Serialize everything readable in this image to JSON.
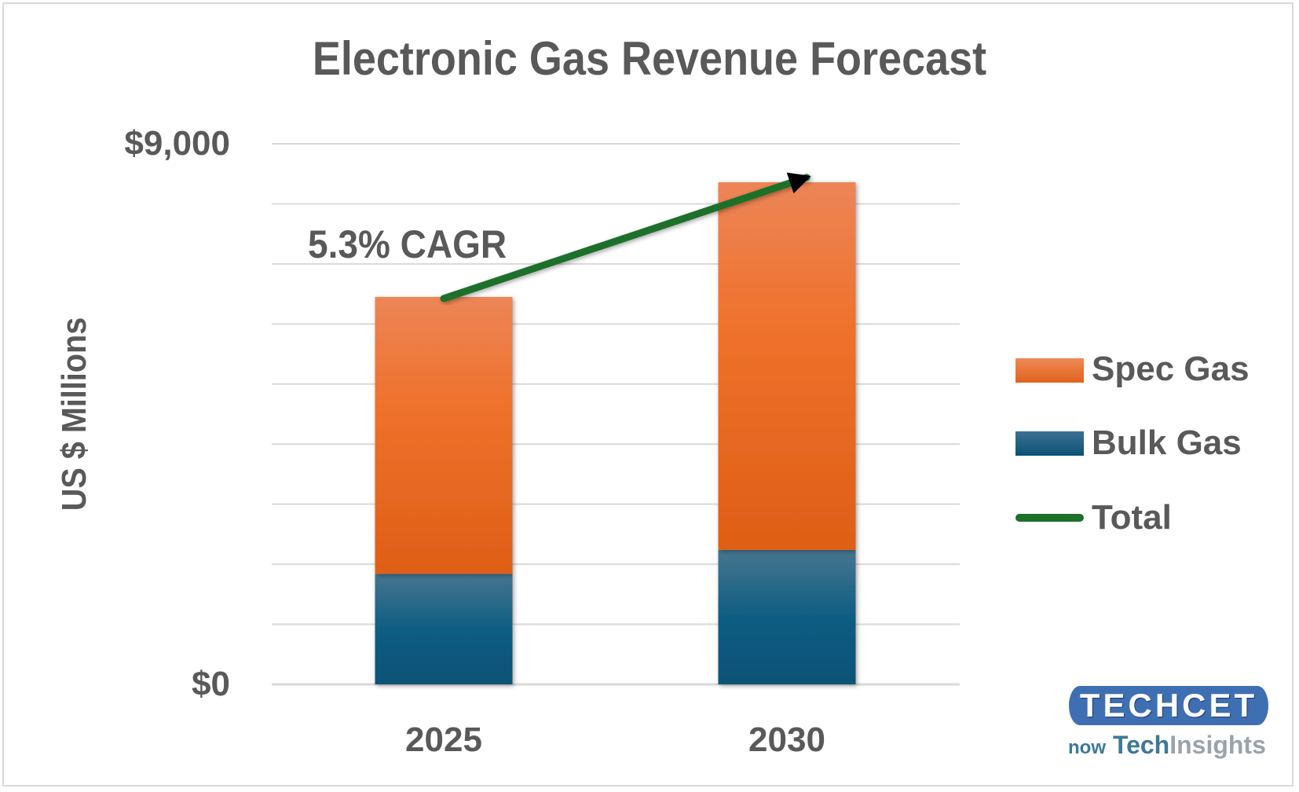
{
  "chart_data": {
    "type": "bar",
    "stacked": true,
    "title": "Electronic Gas Revenue Forecast",
    "xlabel": "",
    "ylabel": "US $ Millions",
    "categories": [
      "2025",
      "2030"
    ],
    "series": [
      {
        "name": "Bulk Gas",
        "values": [
          1840,
          2240
        ],
        "color": "#0f5a80"
      },
      {
        "name": "Spec Gas",
        "values": [
          4610,
          6120
        ],
        "color": "#ec6f2a"
      }
    ],
    "line_series": {
      "name": "Total",
      "values": [
        6450,
        8360
      ],
      "color": "#1e7029"
    },
    "ylim": [
      0,
      9000
    ],
    "ytick_labels": [
      "$0",
      "$9,000"
    ],
    "grid_step": 1000,
    "grid": true,
    "legend_position": "right",
    "annotation": "5.3% CAGR"
  },
  "logo": {
    "main": "TECHCET",
    "now": "now",
    "tech": "Tech",
    "insights": "Insights"
  }
}
